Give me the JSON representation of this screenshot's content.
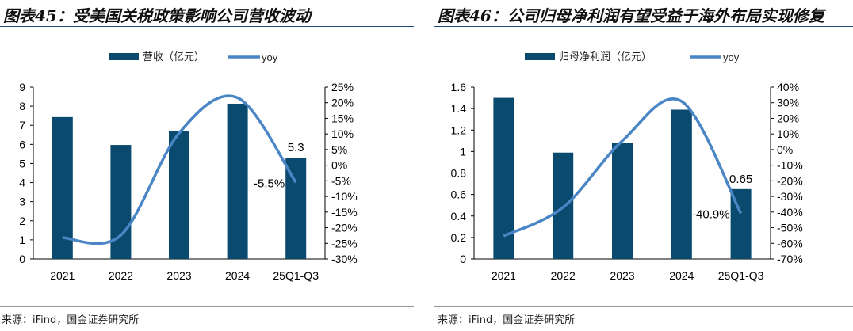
{
  "colors": {
    "bar": "#0b4a6f",
    "line": "#4a86c5"
  },
  "charts": [
    {
      "title": "图表45：受美国关税政策影响公司营收波动",
      "source": "来源：iFind，国金证券研究所"
    },
    {
      "title": "图表46：公司归母净利润有望受益于海外布局实现修复",
      "source": "来源：iFind，国金证券研究所"
    }
  ],
  "chart_data": [
    {
      "type": "bar+line",
      "categories": [
        "2021",
        "2022",
        "2023",
        "2024",
        "25Q1-Q3"
      ],
      "series": [
        {
          "name": "营收（亿元）",
          "axis": "left",
          "type": "bar",
          "values": [
            7.43,
            5.97,
            6.72,
            8.13,
            5.3
          ]
        },
        {
          "name": "yoy",
          "axis": "right",
          "type": "line",
          "values": [
            -23.2,
            -22.4,
            10.3,
            21.6,
            -5.5
          ]
        }
      ],
      "data_labels": [
        "5.3",
        "-5.5%"
      ],
      "yleft": {
        "min": 0,
        "max": 9,
        "step": 1,
        "ticks": [
          "0",
          "1",
          "2",
          "3",
          "4",
          "5",
          "6",
          "7",
          "8",
          "9"
        ]
      },
      "yright": {
        "min": -30,
        "max": 25,
        "step": 5,
        "ticks": [
          "-30%",
          "-25%",
          "-20%",
          "-15%",
          "-10%",
          "-5%",
          "0%",
          "5%",
          "10%",
          "15%",
          "20%",
          "25%"
        ]
      },
      "legend": "top-center"
    },
    {
      "type": "bar+line",
      "categories": [
        "2021",
        "2022",
        "2023",
        "2024",
        "25Q1-Q3"
      ],
      "series": [
        {
          "name": "归母净利润（亿元）",
          "axis": "left",
          "type": "bar",
          "values": [
            1.5,
            0.99,
            1.08,
            1.39,
            0.65
          ]
        },
        {
          "name": "yoy",
          "axis": "right",
          "type": "line",
          "values": [
            -55.3,
            -37,
            5.6,
            30.9,
            -40.9
          ]
        }
      ],
      "data_labels": [
        "0.65",
        "-40.9%"
      ],
      "yleft": {
        "min": 0,
        "max": 1.6,
        "step": 0.2,
        "ticks": [
          "0",
          "0.2",
          "0.4",
          "0.6",
          "0.8",
          "1",
          "1.2",
          "1.4",
          "1.6"
        ]
      },
      "yright": {
        "min": -70,
        "max": 40,
        "step": 10,
        "ticks": [
          "-70%",
          "-60%",
          "-50%",
          "-40%",
          "-30%",
          "-20%",
          "-10%",
          "0%",
          "10%",
          "20%",
          "30%",
          "40%"
        ]
      },
      "legend": "top-center"
    }
  ]
}
